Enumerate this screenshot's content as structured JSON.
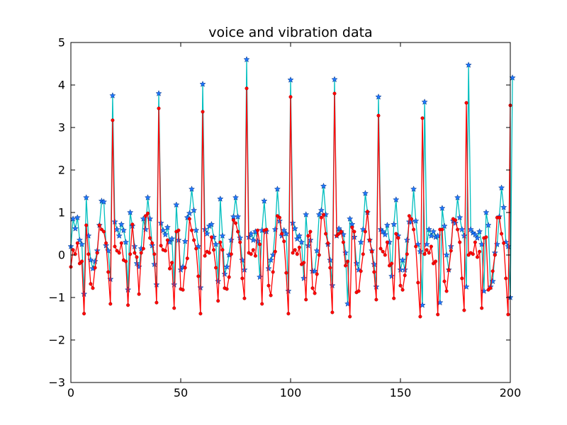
{
  "chart_data": {
    "type": "line",
    "title": "voice and vibration data",
    "xlabel": "",
    "ylabel": "",
    "xlim": [
      0,
      200
    ],
    "ylim": [
      -3,
      5
    ],
    "xticks": [
      0,
      50,
      100,
      150,
      200
    ],
    "yticks": [
      -3,
      -2,
      -1,
      0,
      1,
      2,
      3,
      4,
      5
    ],
    "grid": false,
    "colors": {
      "series_red": "#ff0000",
      "series_cyan": "#00bfbf",
      "star_marker": "#1f77ff"
    },
    "series": [
      {
        "values": [
          -0.28,
          0.12,
          0.02,
          0.28,
          -0.2,
          -0.15,
          -1.38,
          0.7,
          0.02,
          -0.68,
          -0.78,
          -0.3,
          0.05,
          0.7,
          0.6,
          0.55,
          0.28,
          -0.4,
          -1.15,
          3.17,
          0.2,
          0.1,
          0.05,
          0.28,
          -0.12,
          -0.15,
          -1.18,
          0.02,
          0.72,
          0.05,
          -0.05,
          -0.92,
          0.05,
          0.15,
          0.92,
          0.98,
          0.4,
          0.28,
          0.02,
          -1.12,
          3.45,
          0.22,
          0.12,
          0.1,
          0.35,
          -0.32,
          -0.18,
          -1.25,
          0.55,
          0.58,
          -0.8,
          -0.82,
          -0.3,
          -0.08,
          0.85,
          0.58,
          0.35,
          0.15,
          -0.5,
          -1.38,
          3.37,
          -0.02,
          0.08,
          0.05,
          0.42,
          0.12,
          -0.3,
          -1.08,
          0.3,
          0.12,
          -0.78,
          -0.8,
          -0.52,
          0.02,
          0.82,
          0.75,
          0.55,
          0.3,
          -0.55,
          -1.02,
          3.92,
          0.05,
          0.02,
          0.12,
          -0.02,
          0.58,
          0.25,
          -1.15,
          0.58,
          0.6,
          -0.72,
          -0.95,
          -0.4,
          0.08,
          0.92,
          0.88,
          0.5,
          0.32,
          -0.42,
          -1.38,
          3.72,
          0.05,
          0.12,
          0.02,
          0.18,
          -0.22,
          -0.18,
          -1.05,
          0.45,
          0.55,
          -0.78,
          -0.9,
          -0.45,
          0.0,
          0.88,
          0.95,
          0.5,
          0.28,
          -0.3,
          -1.35,
          3.8,
          0.45,
          0.5,
          0.55,
          0.3,
          -0.25,
          -0.15,
          -1.45,
          0.65,
          0.55,
          -0.88,
          -0.85,
          -0.38,
          0.02,
          0.55,
          1.02,
          0.35,
          0.08,
          -0.4,
          -1.05,
          3.28,
          0.15,
          0.08,
          0.0,
          0.3,
          -0.25,
          -0.2,
          -1.02,
          0.5,
          0.4,
          -0.72,
          -0.82,
          -0.48,
          0.02,
          0.92,
          0.85,
          0.6,
          0.2,
          -0.65,
          -1.45,
          3.22,
          0.02,
          0.12,
          0.05,
          0.2,
          -0.2,
          -0.15,
          -1.4,
          0.6,
          0.6,
          -0.62,
          -0.85,
          -0.35,
          0.1,
          0.85,
          0.82,
          0.6,
          0.3,
          -0.55,
          -1.3,
          3.58,
          0.0,
          0.05,
          0.02,
          0.3,
          -0.05,
          0.08,
          -1.25,
          0.4,
          0.42,
          -0.82,
          -0.78,
          -0.38,
          0.0,
          0.88,
          0.88,
          0.5,
          0.28,
          -0.55,
          -1.4,
          3.52
        ]
      },
      {
        "values": [
          0.2,
          0.85,
          0.62,
          0.88,
          0.35,
          0.25,
          -0.92,
          1.35,
          0.45,
          -0.12,
          -0.32,
          -0.15,
          0.1,
          0.7,
          1.27,
          1.25,
          0.22,
          0.1,
          -0.57,
          3.75,
          0.78,
          0.6,
          0.45,
          0.72,
          0.58,
          0.3,
          -0.82,
          1.0,
          0.68,
          0.2,
          -0.2,
          -0.28,
          0.15,
          0.85,
          0.6,
          1.35,
          0.85,
          0.22,
          -0.22,
          -0.7,
          3.8,
          0.75,
          0.58,
          0.48,
          0.65,
          0.3,
          0.38,
          -0.7,
          1.18,
          0.35,
          -0.35,
          -0.28,
          0.32,
          0.88,
          0.98,
          1.55,
          1.05,
          0.58,
          0.2,
          -0.77,
          4.02,
          0.6,
          0.5,
          0.68,
          0.72,
          0.42,
          0.25,
          -0.62,
          1.32,
          0.45,
          -0.45,
          -0.28,
          0.0,
          0.35,
          0.9,
          1.35,
          0.9,
          0.4,
          -0.12,
          -0.35,
          4.6,
          0.42,
          0.5,
          0.35,
          0.55,
          0.32,
          -0.52,
          0.58,
          1.27,
          0.55,
          -0.32,
          -0.12,
          0.0,
          0.6,
          1.55,
          0.8,
          0.45,
          0.58,
          0.5,
          -0.85,
          4.12,
          0.75,
          0.62,
          0.38,
          0.45,
          0.3,
          -0.55,
          0.95,
          0.22,
          0.35,
          -0.38,
          -0.38,
          0.1,
          0.95,
          1.05,
          1.62,
          0.95,
          0.25,
          -0.12,
          -0.72,
          4.13,
          0.45,
          0.62,
          0.55,
          0.48,
          0.05,
          -1.15,
          0.85,
          0.72,
          0.42,
          -0.2,
          -0.35,
          0.3,
          0.6,
          1.45,
          1.0,
          0.35,
          0.1,
          -0.22,
          -0.75,
          3.72,
          0.6,
          0.55,
          0.48,
          0.7,
          0.3,
          -0.5,
          0.72,
          1.3,
          0.45,
          -0.35,
          -0.12,
          -0.35,
          0.35,
          0.78,
          0.78,
          1.55,
          0.8,
          0.25,
          0.08,
          -1.18,
          3.6,
          0.25,
          0.6,
          0.45,
          0.55,
          0.42,
          0.45,
          -1.12,
          1.1,
          0.68,
          0.0,
          -0.35,
          0.2,
          0.8,
          0.75,
          1.35,
          0.88,
          0.6,
          0.45,
          -0.75,
          4.47,
          0.6,
          0.52,
          0.48,
          0.4,
          0.55,
          0.25,
          -0.85,
          1.0,
          0.7,
          -0.75,
          -0.62,
          0.05,
          0.25,
          0.9,
          1.58,
          1.12,
          0.3,
          0.2,
          -1.0,
          4.17
        ]
      }
    ]
  }
}
